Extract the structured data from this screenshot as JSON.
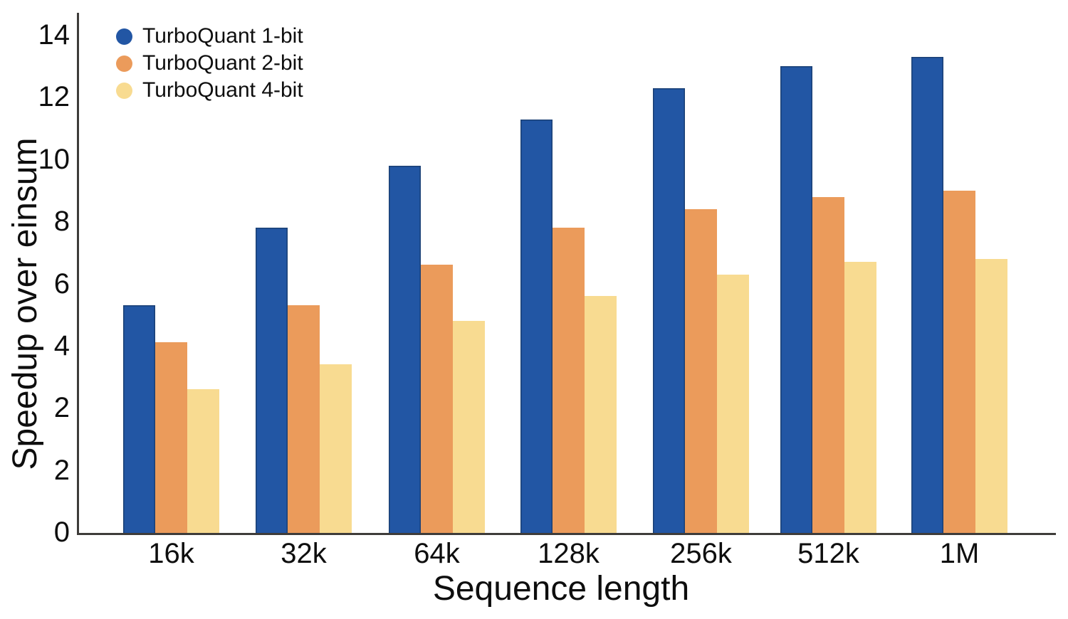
{
  "chart_data": {
    "type": "bar",
    "title": "",
    "xlabel": "Sequence length",
    "ylabel": "Speedup over einsum",
    "categories": [
      "16k",
      "32k",
      "64k",
      "128k",
      "256k",
      "512k",
      "1M"
    ],
    "series": [
      {
        "name": "TurboQuant 1-bit",
        "color": "#2256A4",
        "edge_color": "#1A4075",
        "values": [
          5.3,
          7.8,
          9.8,
          11.3,
          12.3,
          13.0,
          13.3
        ]
      },
      {
        "name": "TurboQuant 2-bit",
        "color": "#EB9B5B",
        "values": [
          4.1,
          5.3,
          6.6,
          7.8,
          8.4,
          8.8,
          9.0
        ]
      },
      {
        "name": "TurboQuant 4-bit",
        "color": "#F8DB91",
        "values": [
          2.6,
          3.4,
          4.8,
          5.6,
          6.3,
          6.7,
          6.8
        ]
      }
    ],
    "y_tick_labels_top_to_bottom": [
      "14",
      "12",
      "10",
      "8",
      "6",
      "4",
      "2",
      "2",
      "0"
    ],
    "ylim_displayed": [
      0,
      14
    ],
    "grid": false,
    "legend_position": "top-left"
  },
  "colors": {
    "axis": "#3E3C3A",
    "text": "#0E0E0E",
    "background": "#FFFFFF"
  }
}
